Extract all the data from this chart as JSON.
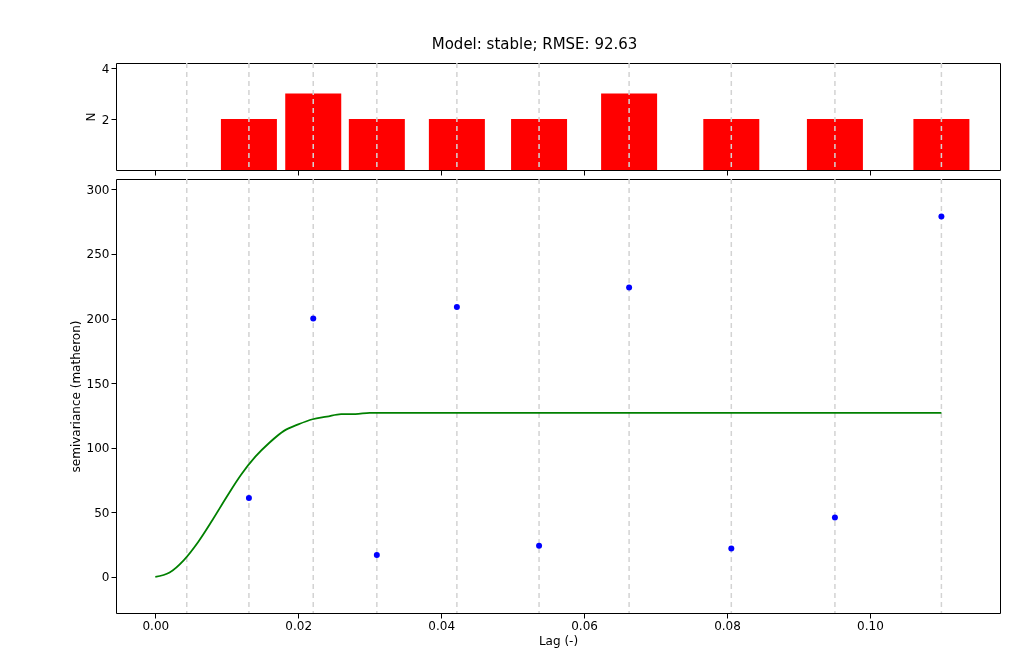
{
  "chart_data": [
    {
      "type": "bar",
      "title": "Model: stable; RMSE: 92.63",
      "ylabel": "N",
      "x": [
        0.0131,
        0.0221,
        0.031,
        0.0422,
        0.0537,
        0.0663,
        0.0806,
        0.0951,
        0.11
      ],
      "values": [
        2,
        3,
        2,
        2,
        2,
        3,
        2,
        2,
        2
      ],
      "color": "#ff0000",
      "xlim": [
        -0.0055,
        0.1182
      ],
      "xticks": [
        {
          "value": 0,
          "label": null
        },
        {
          "value": 0.02,
          "label": null
        },
        {
          "value": 0.04,
          "label": null
        },
        {
          "value": 0.06,
          "label": null
        },
        {
          "value": 0.08,
          "label": null
        },
        {
          "value": 0.1,
          "label": null
        }
      ],
      "ylim": [
        0,
        4.2
      ],
      "yticks": [
        2,
        4
      ],
      "tick_labels": "y",
      "grid": false,
      "ref_lines": [
        {
          "axis": "x",
          "value": 0.0044,
          "color": "#d3d3d3",
          "line_style": "dashed"
        },
        {
          "axis": "x",
          "value": 0.0131,
          "color": "#d3d3d3",
          "line_style": "dashed"
        },
        {
          "axis": "x",
          "value": 0.0221,
          "color": "#d3d3d3",
          "line_style": "dashed"
        },
        {
          "axis": "x",
          "value": 0.031,
          "color": "#d3d3d3",
          "line_style": "dashed"
        },
        {
          "axis": "x",
          "value": 0.0422,
          "color": "#d3d3d3",
          "line_style": "dashed"
        },
        {
          "axis": "x",
          "value": 0.0537,
          "color": "#d3d3d3",
          "line_style": "dashed"
        },
        {
          "axis": "x",
          "value": 0.0663,
          "color": "#d3d3d3",
          "line_style": "dashed"
        },
        {
          "axis": "x",
          "value": 0.0806,
          "color": "#d3d3d3",
          "line_style": "dashed"
        },
        {
          "axis": "x",
          "value": 0.0951,
          "color": "#d3d3d3",
          "line_style": "dashed"
        },
        {
          "axis": "x",
          "value": 0.11,
          "color": "#d3d3d3",
          "line_style": "dashed"
        }
      ]
    },
    {
      "type": "scatter",
      "xlabel": "Lag (-)",
      "ylabel": "semivariance (matheron)",
      "xlim": [
        -0.0055,
        0.1182
      ],
      "ylim": [
        -28,
        308
      ],
      "xticks": [
        {
          "value": 0,
          "label": "0.00"
        },
        {
          "value": 0.02,
          "label": "0.02"
        },
        {
          "value": 0.04,
          "label": "0.04"
        },
        {
          "value": 0.06,
          "label": "0.06"
        },
        {
          "value": 0.08,
          "label": "0.08"
        },
        {
          "value": 0.1,
          "label": "0.10"
        }
      ],
      "yticks": [
        0,
        50,
        100,
        150,
        200,
        250,
        300
      ],
      "grid": false,
      "series": [
        {
          "type": "scatter",
          "color": "#0000ff",
          "marker": "circle",
          "x": [
            0.0131,
            0.0221,
            0.031,
            0.0422,
            0.0537,
            0.0663,
            0.0806,
            0.0951,
            0.11
          ],
          "values": [
            61,
            200,
            17,
            209,
            24,
            224,
            22,
            46,
            279
          ]
        },
        {
          "type": "line",
          "color": "#008000",
          "line_style": "solid",
          "marker": "none",
          "x": [
            0,
            0.002,
            0.004,
            0.006,
            0.008,
            0.01,
            0.012,
            0.014,
            0.016,
            0.018,
            0.02,
            0.022,
            0.024,
            0.026,
            0.028,
            0.03,
            0.04,
            0.11
          ],
          "values": [
            0,
            3.4,
            13,
            27,
            44,
            62,
            79,
            93,
            104,
            113,
            118,
            122,
            124,
            126,
            126,
            127,
            127,
            127
          ]
        }
      ],
      "ref_lines": [
        {
          "axis": "x",
          "value": 0.0044,
          "color": "#d3d3d3",
          "line_style": "dashed"
        },
        {
          "axis": "x",
          "value": 0.0131,
          "color": "#d3d3d3",
          "line_style": "dashed"
        },
        {
          "axis": "x",
          "value": 0.0221,
          "color": "#d3d3d3",
          "line_style": "dashed"
        },
        {
          "axis": "x",
          "value": 0.031,
          "color": "#d3d3d3",
          "line_style": "dashed"
        },
        {
          "axis": "x",
          "value": 0.0422,
          "color": "#d3d3d3",
          "line_style": "dashed"
        },
        {
          "axis": "x",
          "value": 0.0537,
          "color": "#d3d3d3",
          "line_style": "dashed"
        },
        {
          "axis": "x",
          "value": 0.0663,
          "color": "#d3d3d3",
          "line_style": "dashed"
        },
        {
          "axis": "x",
          "value": 0.0806,
          "color": "#d3d3d3",
          "line_style": "dashed"
        },
        {
          "axis": "x",
          "value": 0.0951,
          "color": "#d3d3d3",
          "line_style": "dashed"
        },
        {
          "axis": "x",
          "value": 0.11,
          "color": "#d3d3d3",
          "line_style": "dashed"
        }
      ]
    }
  ]
}
